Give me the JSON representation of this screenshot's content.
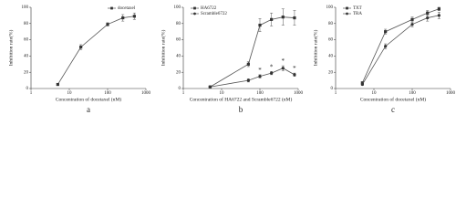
{
  "chart_data": [
    {
      "type": "line",
      "panel_label": "a",
      "xlabel": "Concentration of docetaxel (nM)",
      "ylabel": "Inhibition rate(%)",
      "log_x": true,
      "xlim": [
        1,
        1000
      ],
      "xticks": [
        1,
        10,
        100,
        1000
      ],
      "ylim": [
        0,
        100
      ],
      "yticks": [
        0,
        20,
        40,
        60,
        80,
        100
      ],
      "legend": "top-right",
      "series": [
        {
          "name": "docetaxel",
          "color": "#555555",
          "marker": "square",
          "x": [
            5,
            20,
            100,
            250,
            500
          ],
          "values": [
            5,
            51,
            79,
            87,
            89
          ],
          "errors": [
            1,
            3,
            2,
            4,
            4
          ]
        }
      ]
    },
    {
      "type": "line",
      "panel_label": "b",
      "xlabel": "Concentration of HA6722 and Scramble6722 (nM)",
      "ylabel": "Inhibition rate(%)",
      "log_x": true,
      "xlim": [
        1,
        1000
      ],
      "xticks": [
        1,
        10,
        100,
        1000
      ],
      "ylim": [
        0,
        100
      ],
      "yticks": [
        0,
        20,
        40,
        60,
        80,
        100
      ],
      "legend": "top-left",
      "series": [
        {
          "name": "HA6722",
          "color": "#555555",
          "marker": "square",
          "x": [
            5,
            50,
            100,
            200,
            400,
            800
          ],
          "values": [
            2,
            30,
            78,
            85,
            88,
            87
          ],
          "errors": [
            1,
            3,
            8,
            8,
            10,
            9
          ]
        },
        {
          "name": "Scramble6722",
          "color": "#555555",
          "marker": "circle",
          "x": [
            5,
            50,
            100,
            200,
            400,
            800
          ],
          "values": [
            2,
            10,
            15,
            19,
            25,
            17
          ],
          "errors": [
            1,
            2,
            2,
            2,
            3,
            2
          ]
        }
      ],
      "annotations": [
        {
          "text": "*",
          "x": 100,
          "y": 22
        },
        {
          "text": "*",
          "x": 200,
          "y": 26
        },
        {
          "text": "*",
          "x": 400,
          "y": 33
        },
        {
          "text": "*",
          "x": 800,
          "y": 24
        }
      ]
    },
    {
      "type": "line",
      "panel_label": "c",
      "xlabel": "Concentration of docetaxel (nM)",
      "ylabel": "Inhibition rate(%)",
      "log_x": true,
      "xlim": [
        1,
        1000
      ],
      "xticks": [
        1,
        10,
        100,
        1000
      ],
      "ylim": [
        0,
        100
      ],
      "yticks": [
        0,
        20,
        40,
        60,
        80,
        100
      ],
      "legend": "top-left",
      "series": [
        {
          "name": "TXT",
          "color": "#555555",
          "marker": "square",
          "x": [
            5,
            20,
            100,
            250,
            500
          ],
          "values": [
            7,
            70,
            85,
            93,
            98
          ],
          "errors": [
            1,
            3,
            3,
            3,
            2
          ]
        },
        {
          "name": "TRA",
          "color": "#555555",
          "marker": "circle",
          "x": [
            5,
            20,
            100,
            250,
            500
          ],
          "values": [
            5,
            52,
            79,
            87,
            90
          ],
          "errors": [
            1,
            3,
            3,
            4,
            4
          ]
        }
      ]
    }
  ]
}
